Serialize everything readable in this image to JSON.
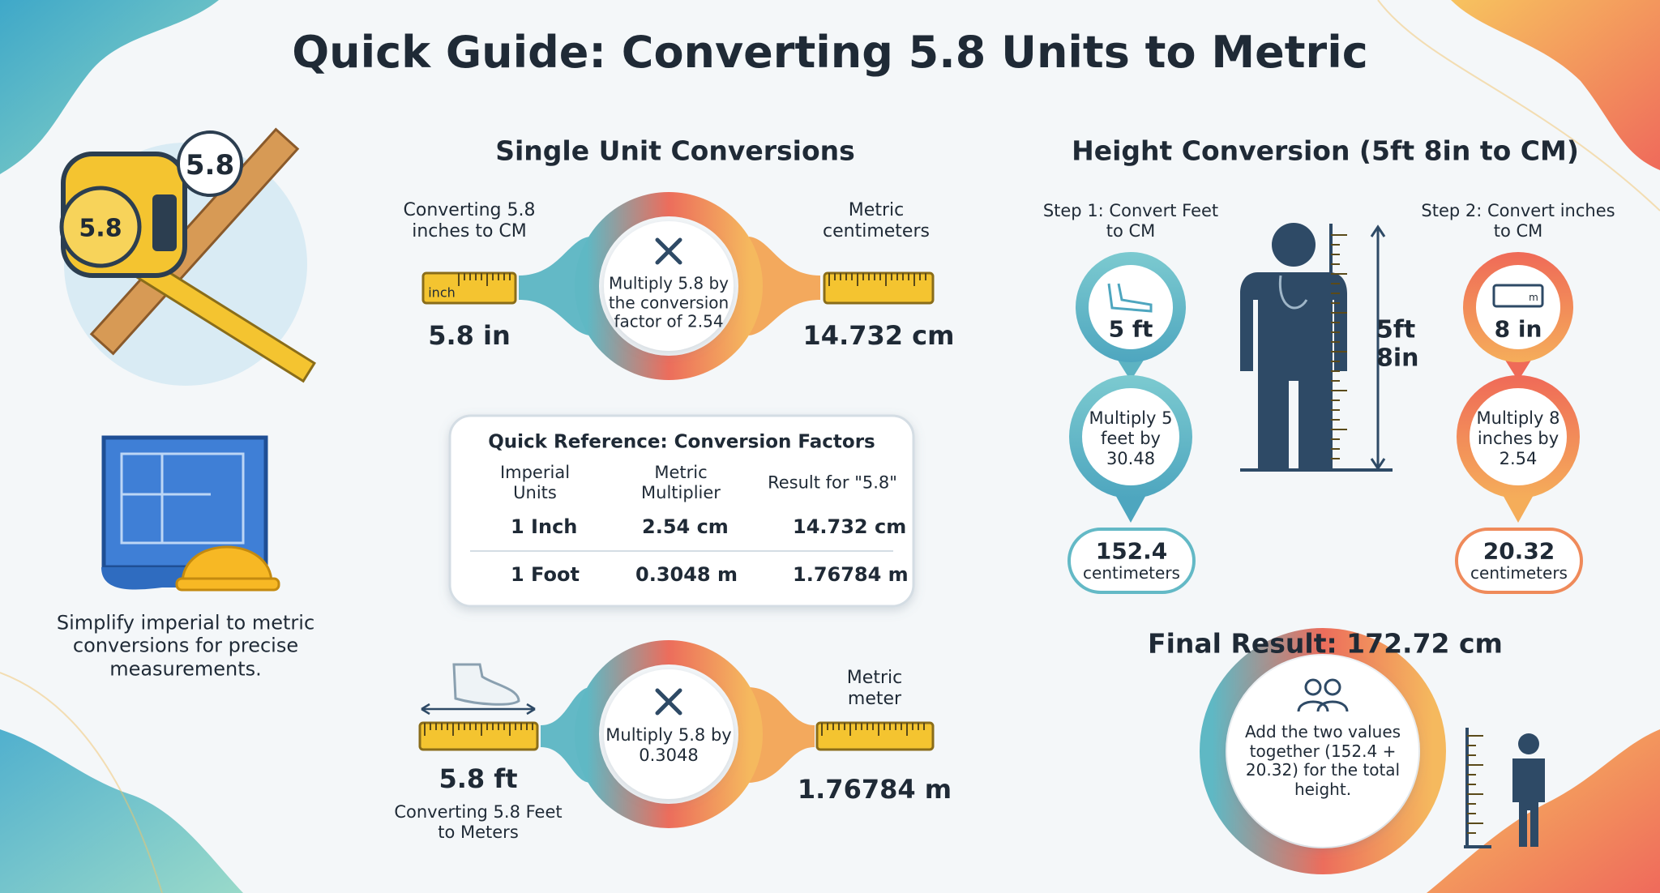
{
  "header": {
    "title": "Quick Guide: Converting 5.8 Units to Metric"
  },
  "intro": {
    "badge": "5.8",
    "tape_label": "5.8",
    "caption": "Simplify imperial to metric conversions for precise measurements."
  },
  "single_unit": {
    "heading": "Single Unit Conversions",
    "inches": {
      "source_label": "Converting 5.8 inches to CM",
      "ruler_label": "inch",
      "source_value": "5.8 in",
      "operation": "Multiply 5.8 by the conversion factor of 2.54",
      "target_label": "Metric centimeters",
      "target_value": "14.732 cm"
    },
    "feet": {
      "source_value": "5.8 ft",
      "source_label": "Converting 5.8 Feet to Meters",
      "operation": "Multiply 5.8 by 0.3048",
      "target_label": "Metric meter",
      "target_value": "1.76784 m"
    }
  },
  "reference": {
    "title": "Quick Reference: Conversion Factors",
    "columns": [
      "Imperial Units",
      "Metric Multiplier",
      "Result for \"5.8\""
    ],
    "rows": [
      [
        "1 Inch",
        "2.54 cm",
        "14.732 cm"
      ],
      [
        "1 Foot",
        "0.3048 m",
        "1.76784 m"
      ]
    ]
  },
  "height": {
    "heading": "Height Conversion (5ft 8in to CM)",
    "figure_label": "5ft 8in",
    "steps": [
      {
        "label": "Step 1: Convert Feet to CM",
        "value": "5 ft",
        "operation": "Multiply 5 feet by 30.48",
        "result": "152.4",
        "unit": "centimeters"
      },
      {
        "label": "Step 2: Convert inches to CM",
        "icon_label": "m",
        "value": "8 in",
        "operation": "Multiply 8 inches by 2.54",
        "result": "20.32",
        "unit": "centimeters"
      }
    ],
    "final": {
      "title": "Final Result: 172.72 cm",
      "description": "Add the two values together (152.4 + 20.32) for the total height."
    }
  }
}
